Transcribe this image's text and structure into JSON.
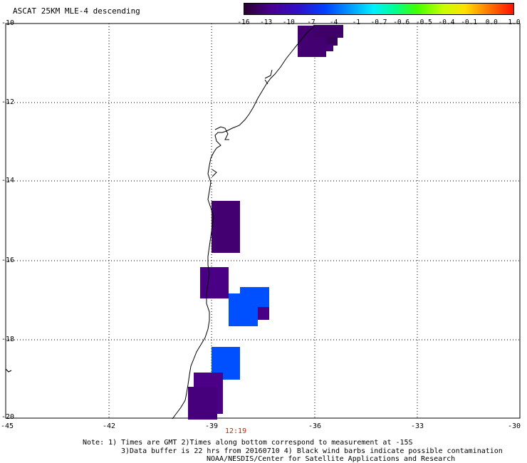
{
  "title": "ASCAT 25KM MLE-4 descending",
  "colorbar": {
    "labels": [
      "-16",
      "-13",
      "-10",
      "-7",
      "-4",
      "-1",
      "-0.7",
      "-0.6",
      "-0.5",
      "-0.4",
      "-0.1",
      "0.0",
      "1.0"
    ],
    "colors": [
      "#3a0050",
      "#4a0090",
      "#3010c0",
      "#0030ff",
      "#0090ff",
      "#00e0ff",
      "#00ff90",
      "#40ff00",
      "#c0ff00",
      "#ffe000",
      "#ff8000",
      "#ff2000"
    ]
  },
  "axes": {
    "lat_labels": [
      "-10",
      "-12",
      "-14",
      "-16",
      "-18",
      "-20"
    ],
    "lon_labels": [
      "-45",
      "-42",
      "-39",
      "-36",
      "-33",
      "-30"
    ]
  },
  "time_label": "12:19",
  "notes": {
    "line1": "Note: 1) Times are GMT 2)Times along bottom correspond to measurement at -15S",
    "line2": "3)Data buffer is 22 hrs from 20160710 4) Black wind barbs indicate possible contamination",
    "line3": "NOAA/NESDIS/Center for Satellite Applications and Research"
  }
}
